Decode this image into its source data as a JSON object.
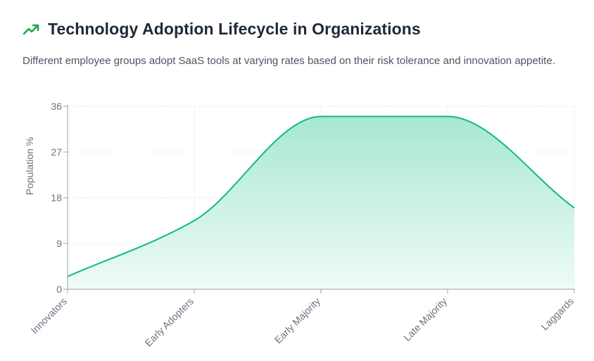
{
  "header": {
    "icon": "trending-up-icon",
    "title": "Technology Adoption Lifecycle in Organizations",
    "subtitle": "Different employee groups adopt SaaS tools at varying rates based on their risk tolerance and innovation appetite."
  },
  "colors": {
    "accent": "#16a34a",
    "line": "#10b981",
    "fill_top": "#a7e8d0",
    "fill_bottom": "#effbf6",
    "grid": "#e5e7eb",
    "axis": "#9ca3af"
  },
  "chart_data": {
    "type": "area",
    "categories": [
      "Innovators",
      "Early Adopters",
      "Early Majority",
      "Late Majority",
      "Laggards"
    ],
    "values": [
      2.5,
      13.5,
      34,
      34,
      16
    ],
    "ylabel": "Population %",
    "xlabel": "",
    "yticks": [
      0,
      9,
      18,
      27,
      36
    ],
    "ylim": [
      0,
      36
    ],
    "grid": true,
    "curve": "smooth"
  }
}
